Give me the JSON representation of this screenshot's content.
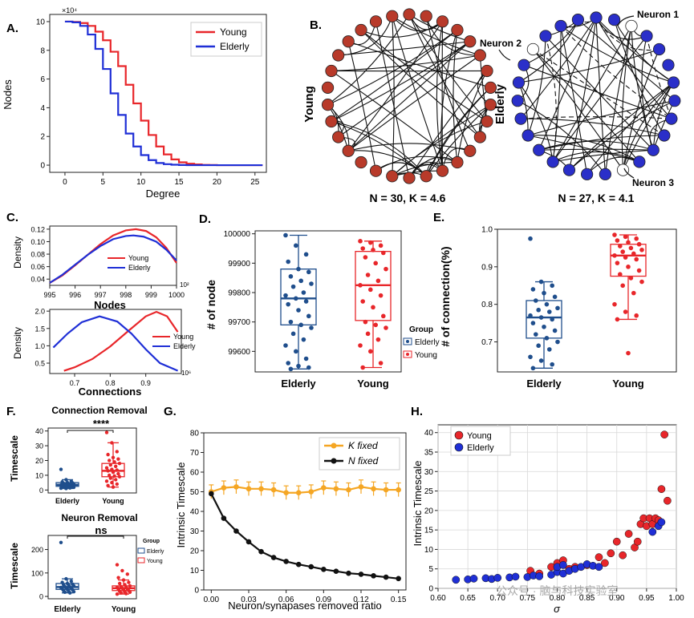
{
  "panel_letters": {
    "a": "A.",
    "b": "B.",
    "c": "C.",
    "d": "D.",
    "e": "E.",
    "f": "F.",
    "g": "G.",
    "h": "H."
  },
  "colors": {
    "young": "#e8262a",
    "elderly": "#1f2fd6",
    "young_box": "#e8262a",
    "elderly_box": "#1f4e8c",
    "k_fixed": "#f5a623",
    "n_fixed": "#111111",
    "young_node": "#b83a2a",
    "elderly_node": "#2a2fc9"
  },
  "watermark": "公众号 · 脑与科技实验室",
  "chart_data": [
    {
      "id": "A",
      "type": "line",
      "xlabel": "Degree",
      "ylabel": "Nodes",
      "y_multiplier": "×10⁴",
      "xlim": [
        -2,
        26.5
      ],
      "ylim": [
        -0.5,
        10.5
      ],
      "xticks": [
        0,
        5,
        10,
        15,
        20,
        25
      ],
      "yticks": [
        0,
        2,
        4,
        6,
        8,
        10
      ],
      "legend": [
        "Young",
        "Elderly"
      ],
      "series": [
        {
          "name": "Young",
          "x": [
            0,
            1,
            2,
            3,
            4,
            5,
            6,
            7,
            8,
            9,
            10,
            11,
            12,
            13,
            14,
            15,
            16,
            17,
            18,
            19,
            20,
            21,
            22,
            23,
            24,
            25,
            26
          ],
          "y": [
            10,
            9.98,
            9.9,
            9.7,
            9.3,
            8.7,
            7.9,
            6.9,
            5.6,
            4.3,
            3.1,
            2.1,
            1.3,
            0.75,
            0.4,
            0.2,
            0.1,
            0.05,
            0.02,
            0.01,
            0,
            0,
            0,
            0,
            0,
            0,
            0
          ]
        },
        {
          "name": "Elderly",
          "x": [
            0,
            1,
            2,
            3,
            4,
            5,
            6,
            7,
            8,
            9,
            10,
            11,
            12,
            13,
            14,
            15,
            16,
            17,
            18,
            19,
            20,
            21,
            22,
            23,
            24,
            25,
            26
          ],
          "y": [
            10,
            9.95,
            9.7,
            9.1,
            8.1,
            6.7,
            5.0,
            3.5,
            2.2,
            1.3,
            0.7,
            0.35,
            0.15,
            0.07,
            0.03,
            0.01,
            0,
            0,
            0,
            0,
            0,
            0,
            0,
            0,
            0,
            0,
            0
          ]
        }
      ]
    },
    {
      "id": "B",
      "type": "network",
      "networks": [
        {
          "label": "Young",
          "caption": "N = 30, K = 4.6",
          "nodes": 30
        },
        {
          "label": "Elderly",
          "caption": "N = 27, K = 4.1",
          "nodes": 27,
          "annotations": [
            "Neuron 1",
            "Neuron 2",
            "Neuron 3"
          ]
        }
      ]
    },
    {
      "id": "C1",
      "type": "line",
      "xlabel": "Nodes",
      "ylabel": "Density",
      "x_multiplier": "10²",
      "xlim": [
        995,
        1000
      ],
      "ylim": [
        0.03,
        0.125
      ],
      "xticks": [
        995,
        996,
        997,
        998,
        999,
        1000
      ],
      "yticks": [
        0.04,
        0.06,
        0.08,
        0.1,
        0.12
      ],
      "legend": [
        "Young",
        "Elderly"
      ],
      "series": [
        {
          "name": "Young",
          "x": [
            995,
            995.5,
            996,
            996.5,
            997,
            997.5,
            998,
            998.4,
            998.8,
            999.2,
            999.6,
            1000
          ],
          "y": [
            0.034,
            0.046,
            0.062,
            0.079,
            0.096,
            0.11,
            0.118,
            0.12,
            0.117,
            0.107,
            0.09,
            0.066
          ]
        },
        {
          "name": "Elderly",
          "x": [
            995,
            995.5,
            996,
            996.5,
            997,
            997.5,
            998,
            998.3,
            998.7,
            999.2,
            999.6,
            1000
          ],
          "y": [
            0.034,
            0.047,
            0.063,
            0.079,
            0.093,
            0.104,
            0.109,
            0.11,
            0.108,
            0.1,
            0.087,
            0.07
          ]
        }
      ]
    },
    {
      "id": "C2",
      "type": "line",
      "xlabel": "Connections",
      "ylabel": "Density",
      "x_multiplier": "10⁶",
      "xlim": [
        0.63,
        1.0
      ],
      "ylim": [
        0.2,
        2.05
      ],
      "xticks": [
        0.7,
        0.8,
        0.9
      ],
      "yticks": [
        0.5,
        1.0,
        1.5,
        2.0
      ],
      "legend": [
        "Young",
        "Elderly"
      ],
      "series": [
        {
          "name": "Young",
          "x": [
            0.67,
            0.7,
            0.75,
            0.8,
            0.85,
            0.9,
            0.93,
            0.96,
            0.99
          ],
          "y": [
            0.28,
            0.38,
            0.62,
            0.98,
            1.42,
            1.85,
            1.98,
            1.85,
            1.4
          ]
        },
        {
          "name": "Elderly",
          "x": [
            0.64,
            0.68,
            0.72,
            0.77,
            0.82,
            0.86,
            0.9,
            0.94,
            0.99
          ],
          "y": [
            0.95,
            1.35,
            1.68,
            1.85,
            1.7,
            1.35,
            0.9,
            0.5,
            0.28
          ]
        }
      ]
    },
    {
      "id": "D",
      "type": "box",
      "ylabel": "# of node",
      "categories": [
        "Elderly",
        "Young"
      ],
      "ylim": [
        99530,
        100010
      ],
      "yticks": [
        99600,
        99700,
        99800,
        99900,
        100000
      ],
      "legend_title": "Group",
      "legend": [
        "Elderly",
        "Young"
      ],
      "boxes": [
        {
          "name": "Elderly",
          "min": 99540,
          "q1": 99690,
          "median": 99780,
          "q3": 99880,
          "max": 99995,
          "points": [
            99995,
            99960,
            99930,
            99905,
            99880,
            99870,
            99855,
            99840,
            99830,
            99820,
            99800,
            99790,
            99780,
            99770,
            99760,
            99740,
            99720,
            99700,
            99690,
            99680,
            99660,
            99640,
            99620,
            99600,
            99575,
            99560,
            99550,
            99545,
            99540
          ]
        },
        {
          "name": "Young",
          "min": 99545,
          "q1": 99705,
          "median": 99825,
          "q3": 99940,
          "max": 99975,
          "points": [
            99975,
            99970,
            99960,
            99950,
            99945,
            99935,
            99920,
            99900,
            99880,
            99860,
            99840,
            99825,
            99810,
            99790,
            99770,
            99750,
            99720,
            99700,
            99690,
            99680,
            99660,
            99640,
            99620,
            99600,
            99560,
            99545
          ]
        }
      ]
    },
    {
      "id": "E",
      "type": "box",
      "ylabel": "# of connection(%)",
      "categories": [
        "Elderly",
        "Young"
      ],
      "ylim": [
        0.62,
        1.0
      ],
      "yticks": [
        0.7,
        0.8,
        0.9,
        1.0
      ],
      "boxes": [
        {
          "name": "Elderly",
          "min": 0.63,
          "q1": 0.71,
          "median": 0.765,
          "q3": 0.81,
          "max": 0.86,
          "points": [
            0.975,
            0.86,
            0.85,
            0.84,
            0.83,
            0.82,
            0.81,
            0.8,
            0.79,
            0.785,
            0.78,
            0.77,
            0.765,
            0.76,
            0.75,
            0.74,
            0.73,
            0.72,
            0.71,
            0.7,
            0.69,
            0.68,
            0.66,
            0.65,
            0.64,
            0.63
          ]
        },
        {
          "name": "Young",
          "min": 0.76,
          "q1": 0.875,
          "median": 0.93,
          "q3": 0.96,
          "max": 0.985,
          "points": [
            0.985,
            0.98,
            0.975,
            0.97,
            0.965,
            0.96,
            0.955,
            0.95,
            0.945,
            0.94,
            0.935,
            0.93,
            0.925,
            0.92,
            0.91,
            0.9,
            0.89,
            0.88,
            0.87,
            0.86,
            0.85,
            0.83,
            0.8,
            0.78,
            0.77,
            0.76,
            0.67
          ]
        }
      ]
    },
    {
      "id": "F1",
      "type": "box",
      "title": "Connection Removal",
      "ylabel": "Timescale",
      "significance": "****",
      "categories": [
        "Elderly",
        "Young"
      ],
      "ylim": [
        -2,
        42
      ],
      "yticks": [
        0,
        10,
        20,
        30,
        40
      ],
      "boxes": [
        {
          "name": "Elderly",
          "min": 1,
          "q1": 2.5,
          "median": 3.5,
          "q3": 5,
          "max": 7,
          "points": [
            14,
            7,
            6,
            5.5,
            5,
            4.8,
            4.5,
            4.2,
            4,
            3.8,
            3.6,
            3.4,
            3.2,
            3,
            2.8,
            2.6,
            2.4,
            2.2,
            2,
            1.8,
            1.6,
            1.4,
            1.2,
            1
          ]
        },
        {
          "name": "Young",
          "min": 2,
          "q1": 9,
          "median": 13,
          "q3": 18,
          "max": 32,
          "points": [
            39,
            32,
            26,
            24,
            22,
            21,
            20,
            19,
            18,
            17,
            16,
            15,
            14,
            13.5,
            13,
            12,
            11,
            10,
            9.5,
            9,
            8,
            7,
            6,
            5,
            4,
            3,
            2
          ]
        }
      ]
    },
    {
      "id": "F2",
      "type": "box",
      "title": "Neuron Removal",
      "ylabel": "Timescale",
      "significance": "ns",
      "categories": [
        "Elderly",
        "Young"
      ],
      "ylim": [
        -10,
        260
      ],
      "yticks": [
        0,
        100,
        200
      ],
      "legend_title": "Group",
      "legend": [
        "Elderly",
        "Young"
      ],
      "boxes": [
        {
          "name": "Elderly",
          "min": 15,
          "q1": 30,
          "median": 40,
          "q3": 55,
          "max": 75,
          "points": [
            230,
            75,
            65,
            60,
            55,
            52,
            50,
            48,
            45,
            42,
            40,
            38,
            36,
            34,
            32,
            30,
            28,
            25,
            22,
            20,
            18,
            15
          ]
        },
        {
          "name": "Young",
          "min": 10,
          "q1": 25,
          "median": 35,
          "q3": 45,
          "max": 70,
          "points": [
            135,
            110,
            95,
            80,
            70,
            60,
            55,
            50,
            45,
            42,
            40,
            38,
            35,
            32,
            30,
            28,
            25,
            22,
            20,
            18,
            15,
            12,
            10
          ]
        }
      ]
    },
    {
      "id": "G",
      "type": "line",
      "xlabel": "Neuron/synapases removed ratio",
      "ylabel": "Intrinsic Timescale",
      "xlim": [
        -0.006,
        0.156
      ],
      "ylim": [
        0,
        80
      ],
      "xticks": [
        0.0,
        0.03,
        0.06,
        0.09,
        0.12,
        0.15
      ],
      "xtick_labels": [
        "0.00",
        "0.03",
        "0.06",
        "0.09",
        "0.12",
        "0.15"
      ],
      "yticks": [
        0,
        10,
        20,
        30,
        40,
        50,
        60,
        70,
        80
      ],
      "legend": [
        "K fixed",
        "N fixed"
      ],
      "series": [
        {
          "name": "K fixed",
          "x": [
            0,
            0.01,
            0.02,
            0.03,
            0.04,
            0.05,
            0.06,
            0.07,
            0.08,
            0.09,
            0.1,
            0.11,
            0.12,
            0.13,
            0.14,
            0.15
          ],
          "y": [
            50,
            52,
            52.5,
            51.5,
            51.5,
            51,
            49.5,
            49.5,
            50,
            52,
            51.5,
            51,
            52.5,
            51.5,
            51,
            51
          ],
          "err": 3.5
        },
        {
          "name": "N fixed",
          "x": [
            0,
            0.01,
            0.02,
            0.03,
            0.04,
            0.05,
            0.06,
            0.07,
            0.08,
            0.09,
            0.1,
            0.11,
            0.12,
            0.13,
            0.14,
            0.15
          ],
          "y": [
            49,
            36.5,
            30,
            24.5,
            19.5,
            16.5,
            14.5,
            13,
            11.8,
            10.5,
            9.5,
            8.5,
            8,
            7.2,
            6.5,
            5.8
          ],
          "err": 0
        }
      ]
    },
    {
      "id": "H",
      "type": "scatter",
      "xlabel": "σ",
      "ylabel": "Intrinsic Timescale",
      "xlim": [
        0.6,
        1.0
      ],
      "ylim": [
        0,
        42
      ],
      "xticks": [
        0.6,
        0.65,
        0.7,
        0.75,
        0.8,
        0.85,
        0.9,
        0.95,
        1.0
      ],
      "xtick_labels": [
        "0.60",
        "0.65",
        "0.70",
        "0.75",
        "0.80",
        "0.85",
        "0.90",
        "0.95",
        "1.00"
      ],
      "yticks": [
        0,
        5,
        10,
        15,
        20,
        25,
        30,
        35,
        40
      ],
      "legend": [
        "Young",
        "Elderly"
      ],
      "series": [
        {
          "name": "Young",
          "x": [
            0.755,
            0.77,
            0.79,
            0.8,
            0.81,
            0.82,
            0.83,
            0.85,
            0.87,
            0.88,
            0.89,
            0.9,
            0.91,
            0.92,
            0.93,
            0.935,
            0.94,
            0.945,
            0.95,
            0.955,
            0.96,
            0.965,
            0.97,
            0.975,
            0.98,
            0.985
          ],
          "y": [
            4.5,
            3.8,
            5.5,
            6.5,
            7.2,
            5,
            5.5,
            6,
            8,
            6.5,
            9,
            12,
            8.5,
            14,
            10.5,
            12,
            16.5,
            18,
            16,
            18,
            16.5,
            18,
            17.5,
            25.5,
            39.5,
            22.5
          ]
        },
        {
          "name": "Elderly",
          "x": [
            0.63,
            0.65,
            0.66,
            0.68,
            0.69,
            0.7,
            0.72,
            0.73,
            0.75,
            0.76,
            0.77,
            0.79,
            0.8,
            0.8,
            0.81,
            0.81,
            0.82,
            0.83,
            0.84,
            0.85,
            0.86,
            0.87,
            0.96,
            0.97,
            0.975
          ],
          "y": [
            2.2,
            2.3,
            2.5,
            2.6,
            2.4,
            2.7,
            2.8,
            3,
            2.9,
            3.3,
            3.1,
            3.5,
            4.2,
            5.5,
            3.8,
            6,
            4.5,
            5,
            5.5,
            6.2,
            5.8,
            5.5,
            14.5,
            16,
            17
          ]
        }
      ]
    }
  ],
  "text": {
    "a_ylabel": "Nodes",
    "a_xlabel": "Degree",
    "a_mult": "×10⁴",
    "a_leg_young": "Young",
    "a_leg_elderly": "Elderly",
    "b_young": "Young",
    "b_elderly": "Elderly",
    "b_cap_young": "N = 30, K = 4.6",
    "b_cap_elderly": "N = 27, K = 4.1",
    "b_n1": "Neuron 1",
    "b_n2": "Neuron 2",
    "b_n3": "Neuron 3",
    "c_density": "Density",
    "c_nodes": "Nodes",
    "c_conn": "Connections",
    "c_mult1": "10²",
    "c_mult2": "10⁶",
    "c_leg_young": "Young",
    "c_leg_elderly": "Elderly",
    "d_ylabel": "# of node",
    "d_group": "Group",
    "d_leg_elderly": "Elderly",
    "d_leg_young": "Young",
    "cat_elderly": "Elderly",
    "cat_young": "Young",
    "e_ylabel": "# of connection(%)",
    "f1_title": "Connection Removal",
    "f2_title": "Neuron Removal",
    "f_ylabel": "Timescale",
    "f1_sig": "****",
    "f2_sig": "ns",
    "f_group": "Group",
    "f_leg_elderly": "Elderly",
    "f_leg_young": "Young",
    "g_ylabel": "Intrinsic Timescale",
    "g_xlabel": "Neuron/synapases removed ratio",
    "g_leg_k": "K fixed",
    "g_leg_n": "N fixed",
    "h_ylabel": "Intrinsic Timescale",
    "h_xlabel": "σ",
    "h_leg_young": "Young",
    "h_leg_elderly": "Elderly"
  }
}
